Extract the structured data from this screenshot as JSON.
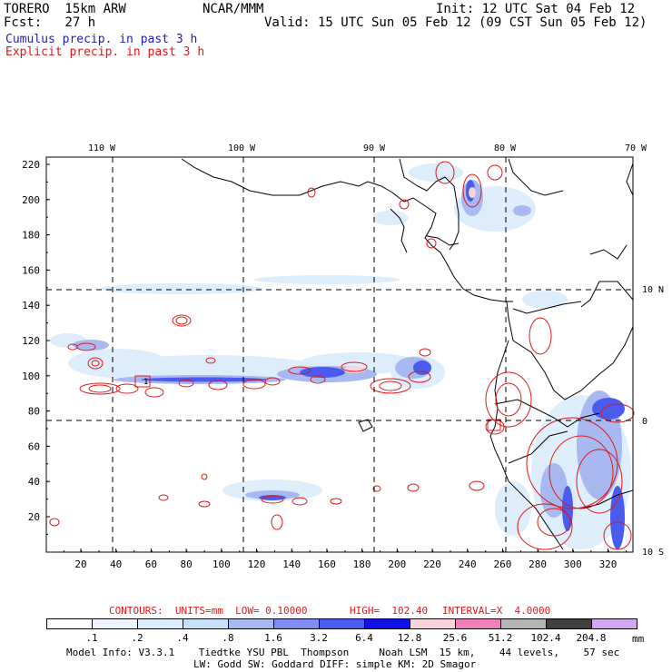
{
  "header": {
    "model": "TORERO  15km ARW",
    "org": "NCAR/MMM",
    "init": "Init: 12 UTC Sat 04 Feb 12",
    "fcst": "Fcst:   27 h",
    "valid": "Valid: 15 UTC Sun 05 Feb 12 (09 CST Sun 05 Feb 12)",
    "cumulus": "Cumulus precip. in past 3 h",
    "explicit": "Explicit precip. in past 3 h"
  },
  "map": {
    "lon_labels": [
      "110 W",
      "100 W",
      "90 W",
      "80 W",
      "70 W"
    ],
    "lat_labels": [
      "10 N",
      "0",
      "10 S"
    ],
    "y_ticks": [
      "220",
      "200",
      "180",
      "160",
      "140",
      "120",
      "100",
      "80",
      "60",
      "40",
      "20"
    ],
    "x_ticks": [
      "20",
      "40",
      "60",
      "80",
      "100",
      "120",
      "140",
      "160",
      "180",
      "200",
      "220",
      "240",
      "260",
      "280",
      "300",
      "320"
    ],
    "box_label": "1"
  },
  "contours": {
    "units": "CONTOURS:  UNITS=mm  LOW= 0.10000",
    "high": "HIGH=  102.40",
    "interval": "INTERVAL=X  4.0000"
  },
  "legend": {
    "labels": [
      ".1",
      ".2",
      ".4",
      ".8",
      "1.6",
      "3.2",
      "6.4",
      "12.8",
      "25.6",
      "51.2",
      "102.4",
      "204.8"
    ],
    "unit": "mm",
    "colors": [
      "#ffffff",
      "#eef4ff",
      "#dcedfb",
      "#c8e0f8",
      "#a8b8f0",
      "#7f8cf0",
      "#4a5cf0",
      "#1010e8",
      "#f8d4dc",
      "#f080b8",
      "#b4b4b4",
      "#404040",
      "#d4a8f0"
    ]
  },
  "footer": {
    "line1": "Model Info: V3.3.1    Tiedtke YSU PBL  Thompson     Noah LSM  15 km,    44 levels,    57 sec",
    "line2": "LW: Godd SW: Goddard DIFF: simple KM: 2D Smagor"
  }
}
